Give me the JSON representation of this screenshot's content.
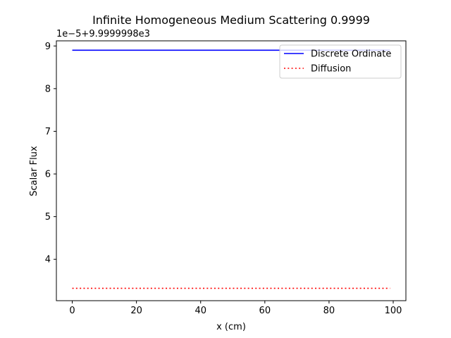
{
  "chart_data": {
    "type": "line",
    "title": "Infinite Homogeneous Medium Scattering 0.9999",
    "xlabel": "x (cm)",
    "ylabel": "Scalar Flux",
    "offset_text": "1e−5+9.9999998e3",
    "xlim": [
      -4.95,
      103.95
    ],
    "ylim": [
      3.03,
      9.12
    ],
    "xticks": [
      0,
      20,
      40,
      60,
      80,
      100
    ],
    "xtick_labels": [
      "0",
      "20",
      "40",
      "60",
      "80",
      "100"
    ],
    "yticks": [
      4,
      5,
      6,
      7,
      8,
      9
    ],
    "ytick_labels": [
      "4",
      "5",
      "6",
      "7",
      "8",
      "9"
    ],
    "grid": false,
    "legend_position": "upper right",
    "series": [
      {
        "name": "Discrete Ordinate",
        "color": "#0000ff",
        "linestyle": "solid",
        "x": [
          0,
          99
        ],
        "y": [
          8.9,
          8.9
        ]
      },
      {
        "name": "Diffusion",
        "color": "#ff0000",
        "linestyle": "dotted",
        "x": [
          0,
          99
        ],
        "y": [
          3.32,
          3.32
        ]
      }
    ]
  }
}
